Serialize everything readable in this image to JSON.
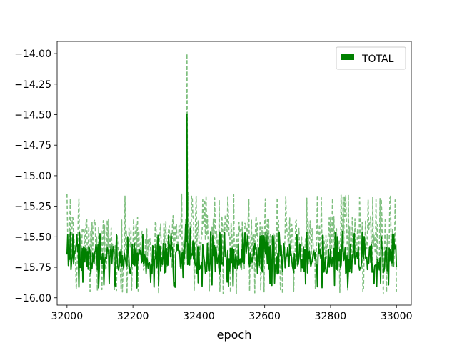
{
  "chart_data": {
    "type": "line",
    "title": "",
    "xlabel": "epoch",
    "ylabel": "",
    "xlim": [
      31970,
      33045
    ],
    "ylim": [
      -16.06,
      -13.9
    ],
    "x_ticks": [
      32000,
      32200,
      32400,
      32600,
      32800,
      33000
    ],
    "x_tick_labels": [
      "32000",
      "32200",
      "32400",
      "32600",
      "32800",
      "33000"
    ],
    "y_ticks": [
      -14.0,
      -14.25,
      -14.5,
      -14.75,
      -15.0,
      -15.25,
      -15.5,
      -15.75,
      -16.0
    ],
    "y_tick_labels": [
      "−14.00",
      "−14.25",
      "−14.50",
      "−14.75",
      "−15.00",
      "−15.25",
      "−15.50",
      "−15.75",
      "−16.00"
    ],
    "grid": false,
    "legend_position": "top-right",
    "legend": [
      {
        "label": "TOTAL",
        "color": "#008000"
      }
    ],
    "series": [
      {
        "name": "TOTAL",
        "color": "#008000",
        "style": "solid",
        "x_start": 32000,
        "x_end": 33000,
        "x_step": 2,
        "baseline": -15.68,
        "noise_low": -15.92,
        "noise_high": -15.45,
        "spike": {
          "x": 32364,
          "y": -14.5
        }
      },
      {
        "name": "",
        "color": "#7fbf7f",
        "style": "dashed",
        "x_start": 32000,
        "x_end": 33000,
        "x_step": 2,
        "baseline": -15.55,
        "noise_low": -15.97,
        "noise_high": -15.15,
        "spike": {
          "x": 32364,
          "y": -14.0
        }
      }
    ]
  }
}
